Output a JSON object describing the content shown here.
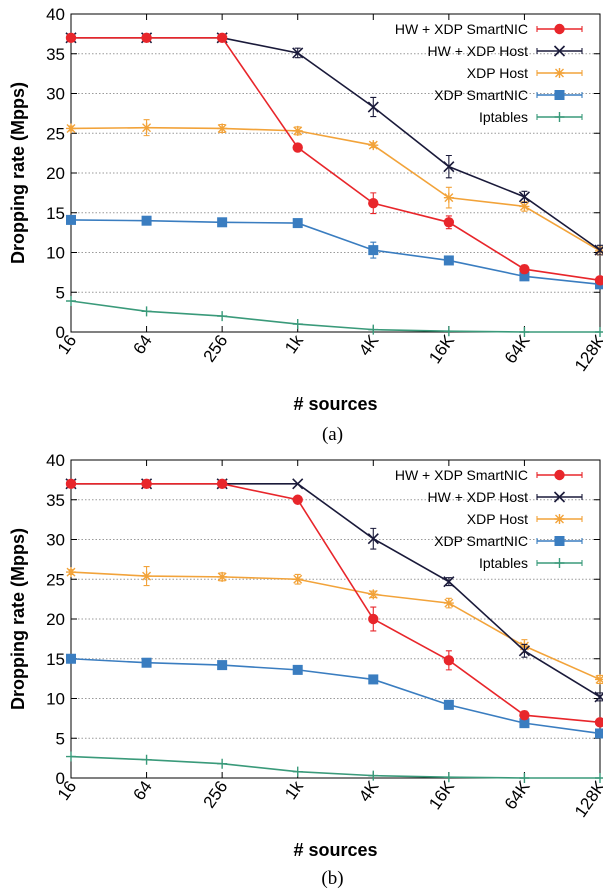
{
  "chart_data": [
    {
      "type": "line",
      "caption": "(a)",
      "xlabel": "# sources",
      "ylabel": "Dropping rate (Mpps)",
      "categories": [
        "16",
        "64",
        "256",
        "1k",
        "4K",
        "16K",
        "64K",
        "128K"
      ],
      "ylim": [
        0,
        40
      ],
      "yticks": [
        0,
        5,
        10,
        15,
        20,
        25,
        30,
        35,
        40
      ],
      "grid": "horizontal-dotted",
      "legend_position": "top-right",
      "series": [
        {
          "name": "HW + XDP SmartNIC",
          "color": "#e8262b",
          "marker": "circle",
          "values": [
            37,
            37,
            37,
            23.2,
            16.2,
            13.8,
            7.9,
            6.5
          ],
          "err": [
            0,
            0,
            0,
            0,
            1.3,
            0.8,
            0.5,
            0.4
          ]
        },
        {
          "name": "HW + XDP Host",
          "color": "#1a1a3a",
          "marker": "x",
          "values": [
            37,
            37,
            37,
            35.1,
            28.3,
            20.8,
            17.0,
            10.3
          ],
          "err": [
            0,
            0,
            0,
            0.6,
            1.2,
            1.4,
            0.7,
            0.6
          ]
        },
        {
          "name": "XDP Host",
          "color": "#f2a33a",
          "marker": "star",
          "values": [
            25.6,
            25.7,
            25.6,
            25.3,
            23.5,
            16.9,
            15.8,
            10.2
          ],
          "err": [
            0.3,
            1.0,
            0.5,
            0.5,
            0.3,
            1.3,
            0.6,
            0.5
          ]
        },
        {
          "name": "XDP SmartNIC",
          "color": "#3a7dc0",
          "marker": "square",
          "values": [
            14.1,
            14.0,
            13.8,
            13.7,
            10.3,
            9.0,
            7.0,
            6.0
          ],
          "err": [
            0,
            0,
            0,
            0,
            1.0,
            0,
            0.4,
            0.3
          ]
        },
        {
          "name": "Iptables",
          "color": "#3a9a7a",
          "marker": "plus",
          "values": [
            3.9,
            2.6,
            2.0,
            1.0,
            0.3,
            0.1,
            0.0,
            0.0
          ],
          "err": [
            0,
            0,
            0,
            0,
            0,
            0,
            0,
            0
          ]
        }
      ]
    },
    {
      "type": "line",
      "caption": "(b)",
      "xlabel": "# sources",
      "ylabel": "Dropping rate (Mpps)",
      "categories": [
        "16",
        "64",
        "256",
        "1k",
        "4K",
        "16K",
        "64K",
        "128K"
      ],
      "ylim": [
        0,
        40
      ],
      "yticks": [
        0,
        5,
        10,
        15,
        20,
        25,
        30,
        35,
        40
      ],
      "grid": "horizontal-dotted",
      "legend_position": "top-right",
      "series": [
        {
          "name": "HW + XDP SmartNIC",
          "color": "#e8262b",
          "marker": "circle",
          "values": [
            37,
            37,
            37,
            35.0,
            20.0,
            14.8,
            7.9,
            7.0
          ],
          "err": [
            0,
            0,
            0,
            0,
            1.5,
            1.2,
            0.5,
            0.4
          ]
        },
        {
          "name": "HW + XDP Host",
          "color": "#1a1a3a",
          "marker": "x",
          "values": [
            37,
            37,
            37,
            37,
            30.1,
            24.7,
            16.0,
            10.2
          ],
          "err": [
            0,
            0,
            0,
            0,
            1.3,
            0.5,
            0.8,
            0.5
          ]
        },
        {
          "name": "XDP Host",
          "color": "#f2a33a",
          "marker": "star",
          "values": [
            25.9,
            25.4,
            25.3,
            25.0,
            23.1,
            22.0,
            16.6,
            12.4
          ],
          "err": [
            0.3,
            1.2,
            0.5,
            0.6,
            0.4,
            0.6,
            0.8,
            0.5
          ]
        },
        {
          "name": "XDP SmartNIC",
          "color": "#3a7dc0",
          "marker": "square",
          "values": [
            15.0,
            14.5,
            14.2,
            13.6,
            12.4,
            9.2,
            6.9,
            5.6
          ],
          "err": [
            0,
            0,
            0,
            0,
            0,
            0,
            0.4,
            0.3
          ]
        },
        {
          "name": "Iptables",
          "color": "#3a9a7a",
          "marker": "plus",
          "values": [
            2.7,
            2.3,
            1.8,
            0.8,
            0.3,
            0.1,
            0.0,
            0.0
          ],
          "err": [
            0,
            0,
            0,
            0,
            0,
            0,
            0,
            0
          ]
        }
      ]
    }
  ]
}
